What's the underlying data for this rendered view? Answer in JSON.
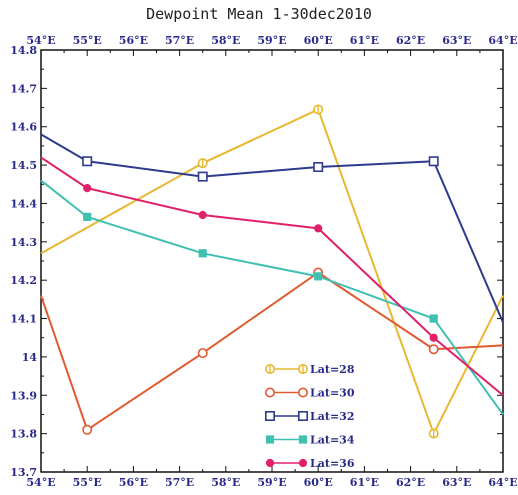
{
  "chart_data": {
    "type": "line",
    "title": "Dewpoint Mean 1-30dec2010",
    "xlabel": "",
    "ylabel": "",
    "x_tick_labels": [
      "54°E",
      "55°E",
      "56°E",
      "57°E",
      "58°E",
      "59°E",
      "60°E",
      "61°E",
      "62°E",
      "63°E",
      "64°E"
    ],
    "x_ticks": [
      54,
      55,
      56,
      57,
      58,
      59,
      60,
      61,
      62,
      63,
      64
    ],
    "y_tick_labels": [
      "13.7",
      "13.8",
      "13.9",
      "14",
      "14.1",
      "14.2",
      "14.3",
      "14.4",
      "14.5",
      "14.6",
      "14.7",
      "14.8"
    ],
    "y_ticks": [
      13.7,
      13.8,
      13.9,
      14.0,
      14.1,
      14.2,
      14.3,
      14.4,
      14.5,
      14.6,
      14.7,
      14.8
    ],
    "xlim": [
      54,
      64
    ],
    "ylim": [
      13.7,
      14.8
    ],
    "grid": false,
    "legend_position": "bottom-center",
    "series": [
      {
        "name": "Lat=28",
        "color": "#e8b830",
        "marker": "circle-cross",
        "x": [
          54,
          57.5,
          60,
          62.5,
          64
        ],
        "y": [
          14.27,
          14.505,
          14.645,
          13.8,
          14.16
        ]
      },
      {
        "name": "Lat=30",
        "color": "#e05a30",
        "marker": "open-circle",
        "x": [
          54,
          55,
          57.5,
          60,
          62.5,
          64
        ],
        "y": [
          14.16,
          13.81,
          14.01,
          14.22,
          14.02,
          14.03
        ]
      },
      {
        "name": "Lat=32",
        "color": "#2e3a8c",
        "marker": "open-square",
        "x": [
          54,
          55,
          57.5,
          60,
          62.5,
          64
        ],
        "y": [
          14.58,
          14.51,
          14.47,
          14.495,
          14.51,
          14.09
        ]
      },
      {
        "name": "Lat=34",
        "color": "#40c0b0",
        "marker": "filled-square",
        "x": [
          54,
          55,
          57.5,
          60,
          62.5,
          64
        ],
        "y": [
          14.46,
          14.365,
          14.27,
          14.21,
          14.1,
          13.85
        ]
      },
      {
        "name": "Lat=36",
        "color": "#e0206a",
        "marker": "filled-circle",
        "x": [
          54,
          55,
          57.5,
          60,
          62.5,
          64
        ],
        "y": [
          14.52,
          14.44,
          14.37,
          14.335,
          14.05,
          13.9
        ]
      }
    ]
  }
}
